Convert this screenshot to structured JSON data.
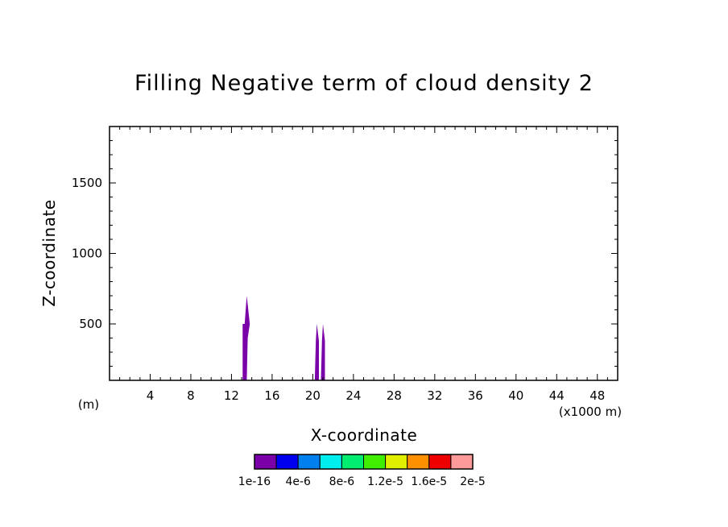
{
  "chart_data": {
    "type": "heatmap",
    "title": "Filling Negative term of cloud density 2",
    "xlabel": "X-coordinate",
    "ylabel": "Z-coordinate",
    "x_unit_left": "(m)",
    "x_unit_right": "(x1000 m)",
    "xlim": [
      0,
      50
    ],
    "ylim": [
      100,
      1900
    ],
    "x_ticks": [
      4,
      8,
      12,
      16,
      20,
      24,
      28,
      32,
      36,
      40,
      44,
      48
    ],
    "x_tick_labels": [
      "4",
      "8",
      "12",
      "16",
      "20",
      "24",
      "28",
      "32",
      "36",
      "40",
      "44",
      "48"
    ],
    "y_ticks": [
      500,
      1000,
      1500
    ],
    "y_tick_labels": [
      "500",
      "1000",
      "1500"
    ],
    "filled_regions": [
      {
        "level": "1e-16",
        "points": [
          [
            13.1,
            100
          ],
          [
            13.1,
            500
          ],
          [
            13.3,
            500
          ],
          [
            13.5,
            700
          ],
          [
            13.8,
            500
          ],
          [
            13.6,
            400
          ],
          [
            13.5,
            100
          ]
        ]
      },
      {
        "level": "1e-16",
        "points": [
          [
            20.2,
            100
          ],
          [
            20.3,
            380
          ],
          [
            20.4,
            500
          ],
          [
            20.6,
            380
          ],
          [
            20.6,
            100
          ]
        ]
      },
      {
        "level": "1e-16",
        "points": [
          [
            20.8,
            100
          ],
          [
            20.9,
            380
          ],
          [
            21.0,
            500
          ],
          [
            21.2,
            380
          ],
          [
            21.2,
            100
          ]
        ]
      }
    ],
    "colorbar": {
      "colors": [
        "#7a00a8",
        "#0000ee",
        "#0080ee",
        "#00eeee",
        "#00ee70",
        "#40ee00",
        "#e0ee00",
        "#ff9000",
        "#ee0000",
        "#ff9a9a"
      ],
      "tick_labels": [
        "1e-16",
        "4e-6",
        "8e-6",
        "1.2e-5",
        "1.6e-5",
        "2e-5"
      ]
    }
  }
}
